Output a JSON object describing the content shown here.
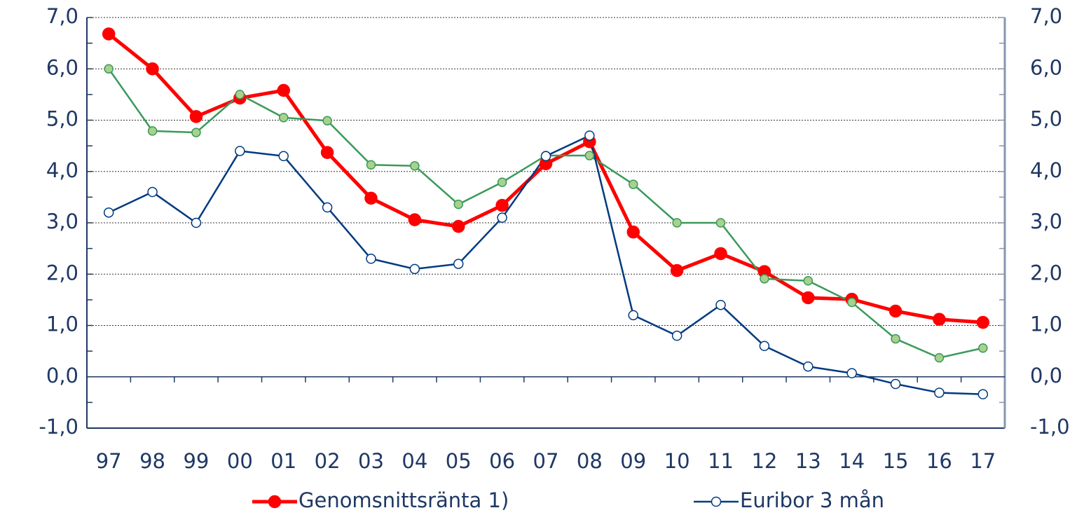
{
  "chart_data": {
    "type": "line",
    "categories": [
      "97",
      "98",
      "99",
      "00",
      "01",
      "02",
      "03",
      "04",
      "05",
      "06",
      "07",
      "08",
      "09",
      "10",
      "11",
      "12",
      "13",
      "14",
      "15",
      "16",
      "17"
    ],
    "series": [
      {
        "name": "Genomsnittsränta 1)",
        "color": "#ff0000",
        "marker_fill": "#ff0000",
        "values": [
          6.68,
          6.0,
          5.07,
          5.43,
          5.58,
          4.37,
          3.48,
          3.06,
          2.93,
          3.34,
          4.15,
          4.58,
          2.82,
          2.07,
          2.4,
          2.05,
          1.54,
          1.51,
          1.28,
          1.12,
          1.06
        ]
      },
      {
        "color": "#3a9a5a",
        "marker_fill": "#a9d18e",
        "values": [
          6.0,
          4.79,
          4.76,
          5.5,
          5.05,
          4.99,
          4.13,
          4.11,
          3.36,
          3.79,
          4.31,
          4.31,
          3.75,
          3.0,
          3.0,
          1.91,
          1.87,
          1.45,
          0.74,
          0.37,
          0.56
        ]
      },
      {
        "name": "Euribor 3 mån",
        "color": "#003a80",
        "marker_fill": "#ffffff",
        "values": [
          3.2,
          3.6,
          3.0,
          4.4,
          4.3,
          3.3,
          2.3,
          2.1,
          2.2,
          3.1,
          4.3,
          4.7,
          1.2,
          0.8,
          1.4,
          0.6,
          0.2,
          0.07,
          -0.14,
          -0.31,
          -0.34
        ]
      }
    ],
    "ylim": [
      -1,
      7
    ],
    "yticks": [
      {
        "value": -1,
        "label": "-1,0"
      },
      {
        "value": 0,
        "label": "0,0"
      },
      {
        "value": 1,
        "label": "1,0"
      },
      {
        "value": 2,
        "label": "2,0"
      },
      {
        "value": 3,
        "label": "3,0"
      },
      {
        "value": 4,
        "label": "4,0"
      },
      {
        "value": 5,
        "label": "5,0"
      },
      {
        "value": 6,
        "label": "6,0"
      },
      {
        "value": 7,
        "label": "7,0"
      }
    ],
    "y2lim": [
      -1,
      7
    ],
    "y2ticks": [
      {
        "value": -1,
        "label": "-1,0"
      },
      {
        "value": 0,
        "label": "0,0"
      },
      {
        "value": 1,
        "label": "1,0"
      },
      {
        "value": 2,
        "label": "2,0"
      },
      {
        "value": 3,
        "label": "3,0"
      },
      {
        "value": 4,
        "label": "4,0"
      },
      {
        "value": 5,
        "label": "5,0"
      },
      {
        "value": 6,
        "label": "6,0"
      },
      {
        "value": 7,
        "label": "7,0"
      }
    ],
    "grid": true,
    "legend": "bottom"
  }
}
